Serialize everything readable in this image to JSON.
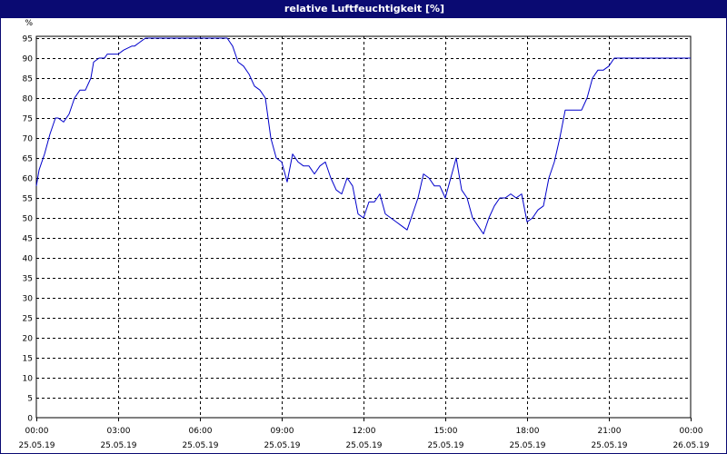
{
  "chart_data": {
    "type": "line",
    "title": "relative Luftfeuchtigkeit [%]",
    "y_unit_label": "%",
    "ylim": [
      0,
      95
    ],
    "y_ticks": [
      0,
      5,
      10,
      15,
      20,
      25,
      30,
      35,
      40,
      45,
      50,
      55,
      60,
      65,
      70,
      75,
      80,
      85,
      90,
      95
    ],
    "x_range_hours": [
      0,
      24
    ],
    "x_ticks": [
      {
        "time": "00:00",
        "date": "25.05.19"
      },
      {
        "time": "03:00",
        "date": "25.05.19"
      },
      {
        "time": "06:00",
        "date": "25.05.19"
      },
      {
        "time": "09:00",
        "date": "25.05.19"
      },
      {
        "time": "12:00",
        "date": "25.05.19"
      },
      {
        "time": "15:00",
        "date": "25.05.19"
      },
      {
        "time": "18:00",
        "date": "25.05.19"
      },
      {
        "time": "21:00",
        "date": "25.05.19"
      },
      {
        "time": "00:00",
        "date": "26.05.19"
      }
    ],
    "grid": true,
    "line_color": "#0000cc",
    "series": [
      {
        "x_hours": [
          0,
          0.1,
          0.3,
          0.5,
          0.7,
          0.8,
          1.0,
          1.2,
          1.4,
          1.6,
          1.8,
          2.0,
          2.1,
          2.3,
          2.5,
          2.6,
          2.8,
          3.0,
          3.2,
          3.5,
          3.6,
          3.8,
          4.0,
          4.2,
          4.4,
          4.6,
          4.8,
          5.0,
          5.5,
          6.0,
          6.3,
          6.5,
          6.8,
          7.0,
          7.2,
          7.4,
          7.6,
          7.8,
          8.0,
          8.2,
          8.4,
          8.6,
          8.8,
          9.0,
          9.2,
          9.4,
          9.6,
          9.8,
          10.0,
          10.2,
          10.4,
          10.6,
          10.8,
          11.0,
          11.2,
          11.4,
          11.6,
          11.8,
          12.0,
          12.2,
          12.4,
          12.6,
          12.8,
          13.0,
          13.2,
          13.4,
          13.6,
          13.8,
          14.0,
          14.2,
          14.4,
          14.6,
          14.8,
          15.0,
          15.2,
          15.4,
          15.6,
          15.8,
          16.0,
          16.2,
          16.4,
          16.6,
          16.8,
          17.0,
          17.2,
          17.4,
          17.6,
          17.8,
          18.0,
          18.2,
          18.4,
          18.6,
          18.8,
          19.0,
          19.2,
          19.4,
          19.6,
          19.8,
          20.0,
          20.2,
          20.4,
          20.6,
          20.8,
          21.0,
          21.2,
          21.4,
          21.6,
          21.8,
          22.0,
          22.2,
          22.4,
          22.6,
          22.8,
          23.0,
          23.2,
          23.4,
          23.6,
          23.8,
          24.0
        ],
        "y": [
          58,
          62,
          66,
          71,
          75,
          75,
          74,
          76,
          80,
          82,
          82,
          85,
          89,
          90,
          90,
          91,
          91,
          91,
          92,
          93,
          93,
          94,
          95,
          95,
          95,
          95,
          95,
          95,
          95,
          95,
          95,
          95,
          95,
          95,
          93,
          89,
          88,
          86,
          83,
          82,
          80,
          70,
          65,
          64,
          59,
          66,
          64,
          63,
          63,
          61,
          63,
          64,
          60,
          57,
          56,
          60,
          58,
          51,
          50,
          54,
          54,
          56,
          51,
          50,
          49,
          48,
          47,
          51,
          55,
          61,
          60,
          58,
          58,
          55,
          60,
          65,
          57,
          55,
          50,
          48,
          46,
          50,
          53,
          55,
          55,
          56,
          55,
          56,
          49,
          50,
          52,
          53,
          60,
          64,
          70,
          77,
          77,
          77,
          77,
          80,
          85,
          87,
          87,
          88,
          90,
          90,
          90,
          90,
          90,
          90,
          90,
          90,
          90,
          90,
          90,
          90,
          90,
          90,
          90
        ]
      }
    ]
  }
}
